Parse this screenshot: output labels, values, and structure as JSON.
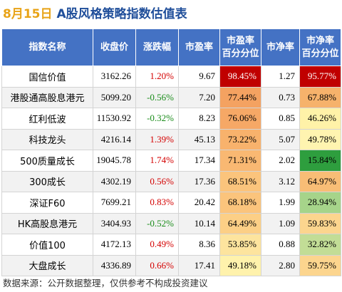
{
  "header": {
    "date": "8月15日",
    "title": "A股风格策略指数估值表"
  },
  "table": {
    "columns": [
      "指数名称",
      "收盘价",
      "涨跌幅",
      "市盈率",
      "市盈率\n百分分位",
      "市净率",
      "市净率\n百分分位"
    ],
    "rows": [
      {
        "name": "国信价值",
        "close": "3162.26",
        "change": "1.20%",
        "change_dir": "up",
        "pe": "9.67",
        "pe_pct": "98.45%",
        "pe_color": "#c00000",
        "pe_text_color": "#ffffff",
        "pb": "1.27",
        "pb_pct": "95.77%",
        "pb_color": "#c00000",
        "pb_text_color": "#ffffff"
      },
      {
        "name": "港股通高股息港元",
        "close": "5099.20",
        "change": "-0.56%",
        "change_dir": "down",
        "pe": "7.20",
        "pe_pct": "77.44%",
        "pe_color": "#f4a261",
        "pe_text_color": "#000000",
        "pb": "0.73",
        "pb_pct": "67.88%",
        "pb_color": "#f6b26b",
        "pb_text_color": "#000000"
      },
      {
        "name": "红利低波",
        "close": "11530.92",
        "change": "-0.32%",
        "change_dir": "down",
        "pe": "8.23",
        "pe_pct": "76.06%",
        "pe_color": "#f6a866",
        "pe_text_color": "#000000",
        "pb": "0.85",
        "pb_pct": "46.26%",
        "pb_color": "#fff2a8",
        "pb_text_color": "#000000"
      },
      {
        "name": "科技龙头",
        "close": "4216.14",
        "change": "1.39%",
        "change_dir": "up",
        "pe": "45.13",
        "pe_pct": "73.22%",
        "pe_color": "#f8b26c",
        "pe_text_color": "#000000",
        "pb": "5.07",
        "pb_pct": "49.78%",
        "pb_color": "#fff4b0",
        "pb_text_color": "#000000"
      },
      {
        "name": "500质量成长",
        "close": "19045.78",
        "change": "1.74%",
        "change_dir": "up",
        "pe": "17.34",
        "pe_pct": "71.31%",
        "pe_color": "#f9b872",
        "pe_text_color": "#000000",
        "pb": "2.02",
        "pb_pct": "15.84%",
        "pb_color": "#2e9e3e",
        "pb_text_color": "#000000"
      },
      {
        "name": "300成长",
        "close": "4302.19",
        "change": "0.56%",
        "change_dir": "up",
        "pe": "17.36",
        "pe_pct": "68.51%",
        "pe_color": "#fbc47c",
        "pe_text_color": "#000000",
        "pb": "3.12",
        "pb_pct": "64.97%",
        "pb_color": "#f8bd76",
        "pb_text_color": "#000000"
      },
      {
        "name": "深证F60",
        "close": "7699.21",
        "change": "0.83%",
        "change_dir": "up",
        "pe": "20.42",
        "pe_pct": "68.18%",
        "pe_color": "#fbc47c",
        "pe_text_color": "#000000",
        "pb": "1.99",
        "pb_pct": "28.94%",
        "pb_color": "#a6d48a",
        "pb_text_color": "#000000"
      },
      {
        "name": "HK高股息港元",
        "close": "3404.93",
        "change": "-0.52%",
        "change_dir": "down",
        "pe": "10.14",
        "pe_pct": "64.49%",
        "pe_color": "#fccf86",
        "pe_text_color": "#000000",
        "pb": "1.09",
        "pb_pct": "59.83%",
        "pb_color": "#fcd58e",
        "pb_text_color": "#000000"
      },
      {
        "name": "价值100",
        "close": "4172.13",
        "change": "0.49%",
        "change_dir": "up",
        "pe": "8.36",
        "pe_pct": "53.85%",
        "pe_color": "#fde49e",
        "pe_text_color": "#000000",
        "pb": "0.88",
        "pb_pct": "32.82%",
        "pb_color": "#c2dd96",
        "pb_text_color": "#000000"
      },
      {
        "name": "大盘成长",
        "close": "4336.89",
        "change": "0.66%",
        "change_dir": "up",
        "pe": "17.41",
        "pe_pct": "49.18%",
        "pe_color": "#fff2ac",
        "pe_text_color": "#000000",
        "pb": "2.80",
        "pb_pct": "59.75%",
        "pb_color": "#fcd58e",
        "pb_text_color": "#000000"
      }
    ]
  },
  "footer": {
    "source": "数据来源：公开数据整理，仅供参考不构成投资建议"
  },
  "colors": {
    "header_bg": "#4472c4",
    "title_date": "#e8a317",
    "title_text": "#1f4e9a",
    "up": "#d40000",
    "down": "#1a8c1a"
  }
}
